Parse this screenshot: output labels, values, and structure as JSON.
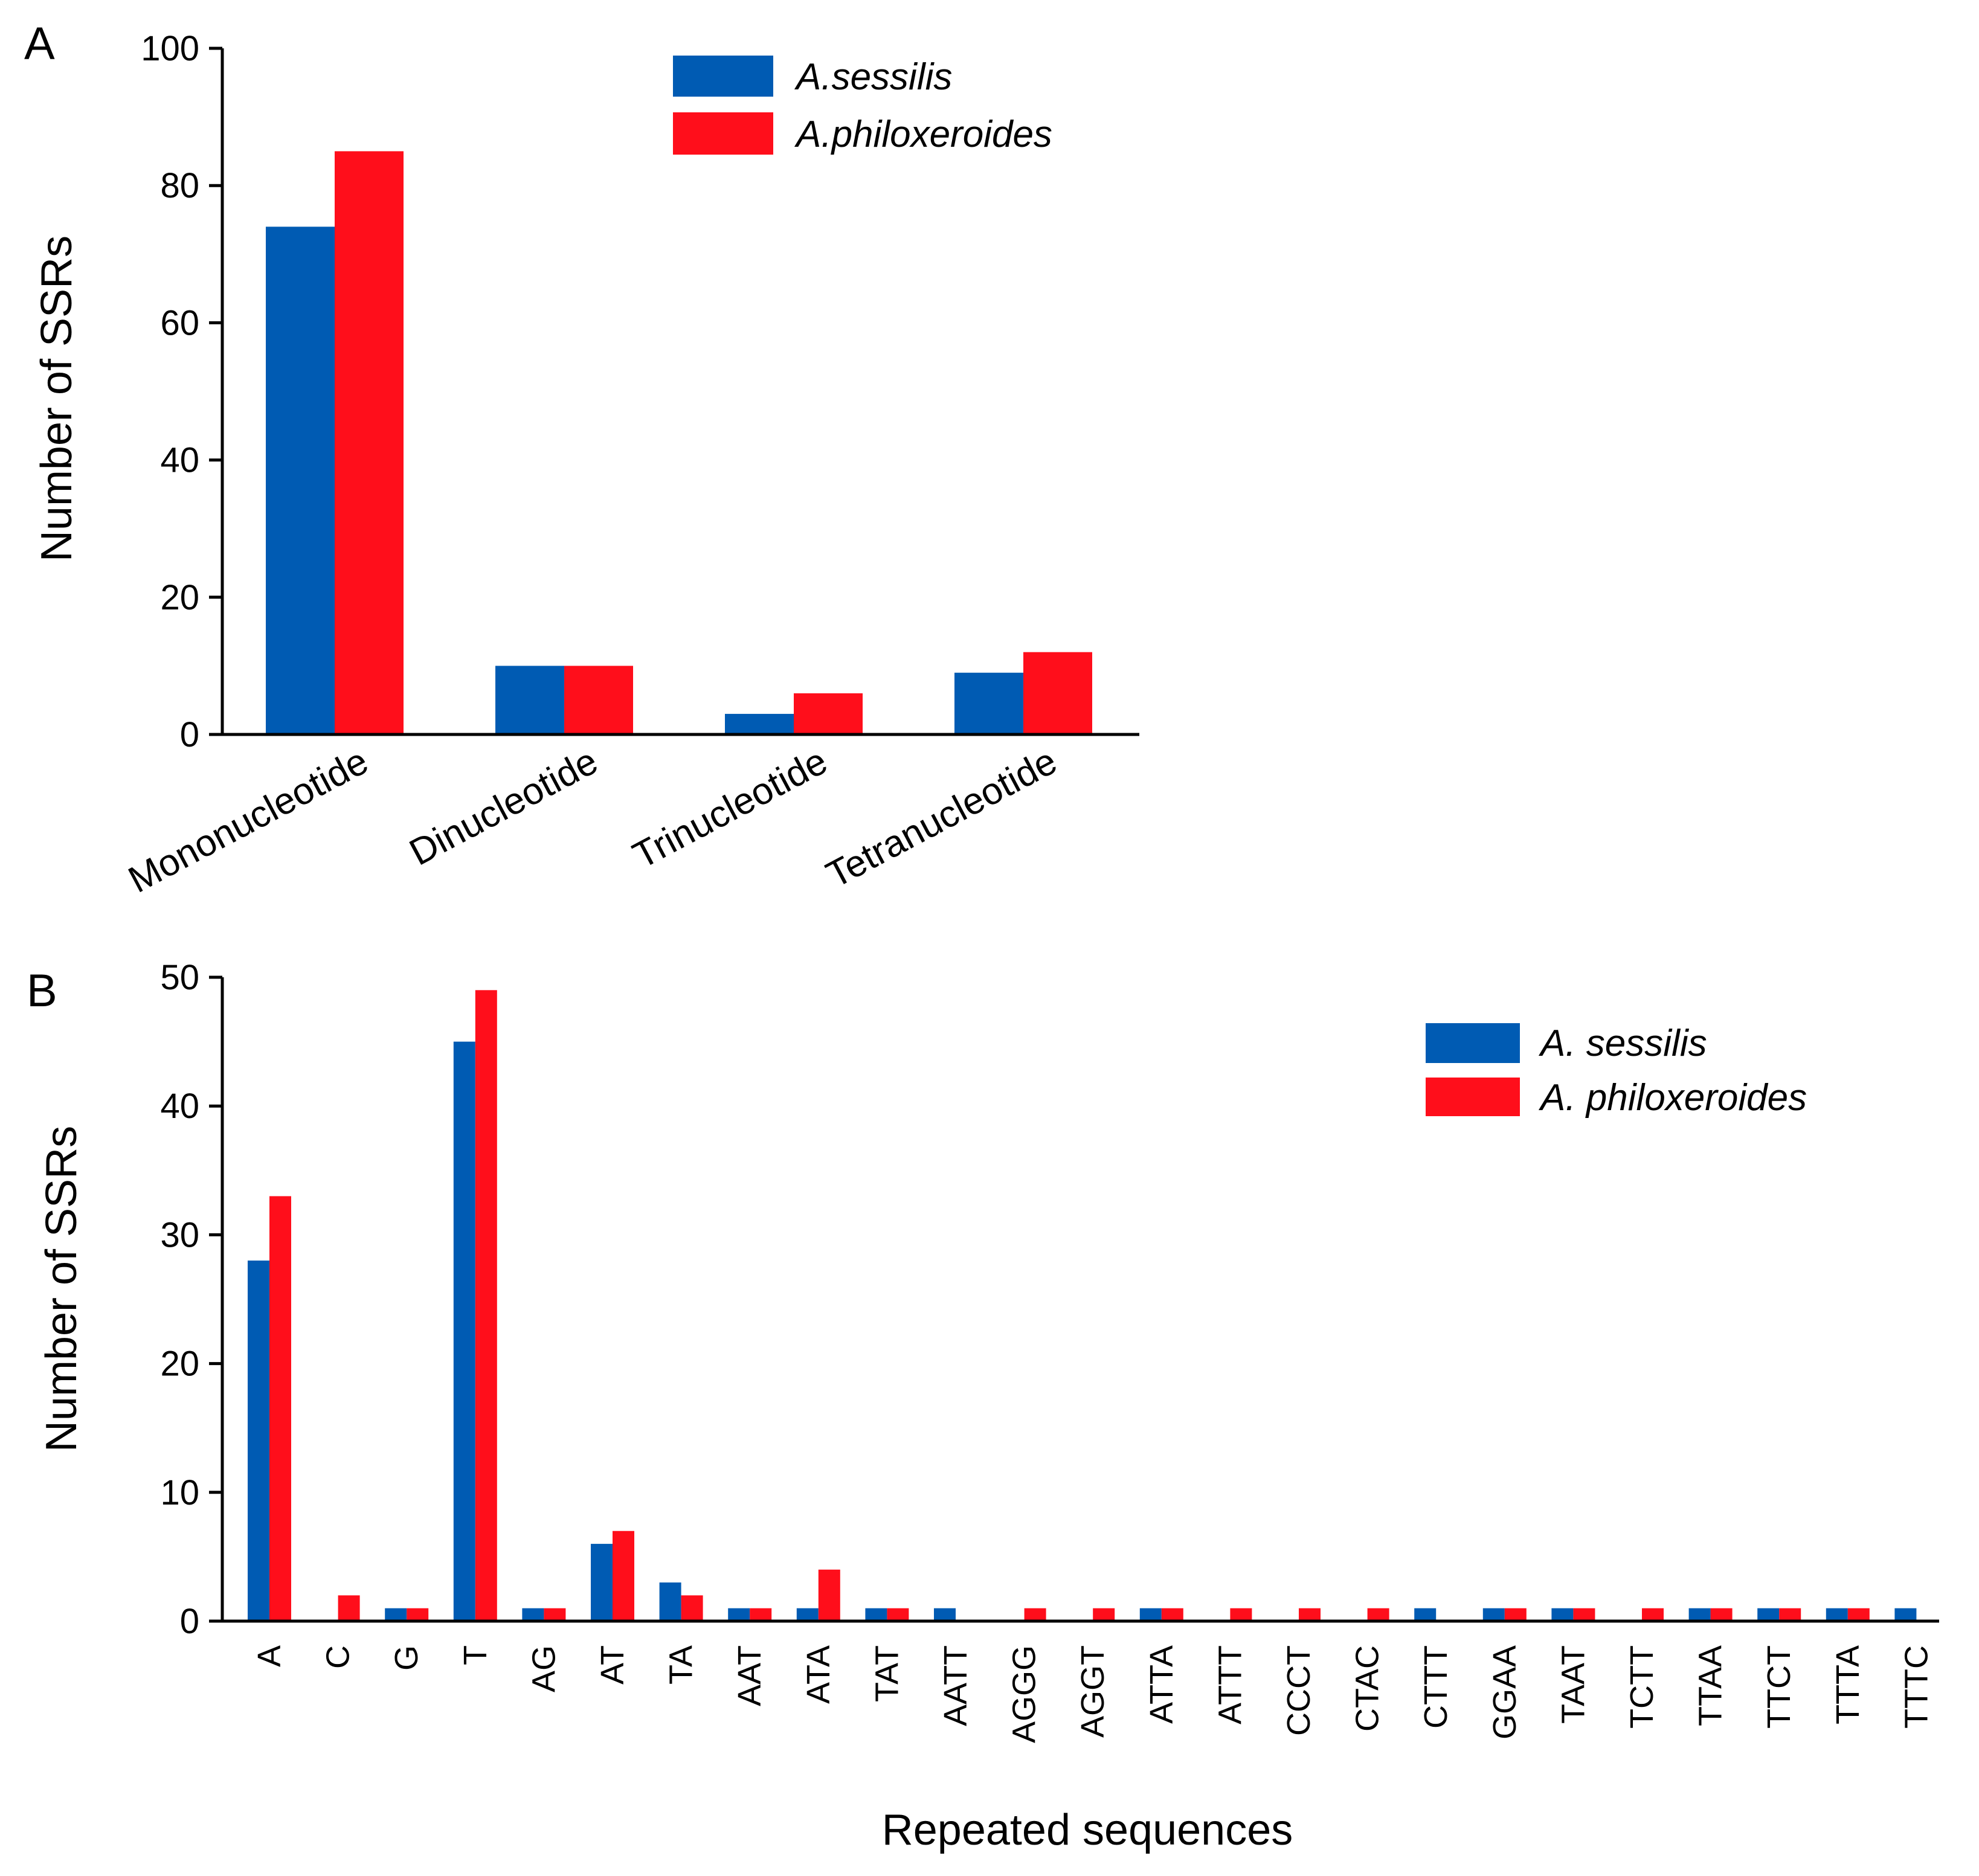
{
  "figure": {
    "panels": [
      "A",
      "B"
    ]
  },
  "colors": {
    "blue": "#005BB3",
    "red": "#FF0E1B"
  },
  "chart_data": [
    {
      "panel": "A",
      "type": "bar",
      "title": "",
      "xlabel": "",
      "ylabel": "Number of SSRs",
      "ylim": [
        0,
        100
      ],
      "yticks": [
        0,
        20,
        40,
        60,
        80,
        100
      ],
      "categories": [
        "Mononucleotide",
        "Dinucleotide",
        "Trinucleotide",
        "Tetranucleotide"
      ],
      "series": [
        {
          "name": "A.sessilis",
          "color": "#005BB3",
          "values": [
            74,
            10,
            3,
            9
          ]
        },
        {
          "name": "A.philoxeroides",
          "color": "#FF0E1B",
          "values": [
            85,
            10,
            6,
            12
          ]
        }
      ],
      "legend_position": "top-center"
    },
    {
      "panel": "B",
      "type": "bar",
      "title": "",
      "xlabel": "Repeated sequences",
      "ylabel": "Number of SSRs",
      "ylim": [
        0,
        50
      ],
      "yticks": [
        0,
        10,
        20,
        30,
        40,
        50
      ],
      "categories": [
        "A",
        "C",
        "G",
        "T",
        "AG",
        "AT",
        "TA",
        "AAT",
        "ATA",
        "TAT",
        "AATT",
        "AGGG",
        "AGGT",
        "ATTA",
        "ATTT",
        "CCCT",
        "CTAC",
        "CTTT",
        "GGAA",
        "TAAT",
        "TCTT",
        "TTAA",
        "TTCT",
        "TTTA",
        "TTTC"
      ],
      "series": [
        {
          "name": "A. sessilis",
          "color": "#005BB3",
          "values": [
            28,
            0,
            1,
            45,
            1,
            6,
            3,
            1,
            1,
            1,
            1,
            0,
            0,
            1,
            0,
            0,
            0,
            1,
            1,
            1,
            0,
            1,
            1,
            1,
            1
          ]
        },
        {
          "name": "A. philoxeroides",
          "color": "#FF0E1B",
          "values": [
            33,
            2,
            1,
            49,
            1,
            7,
            2,
            1,
            4,
            1,
            0,
            1,
            1,
            1,
            1,
            1,
            1,
            0,
            1,
            1,
            1,
            1,
            1,
            1,
            0
          ]
        }
      ],
      "legend_position": "top-right"
    }
  ]
}
